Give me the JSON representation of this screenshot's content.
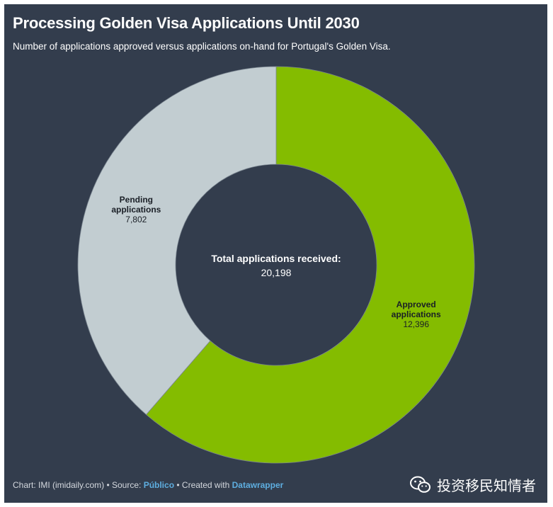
{
  "header": {
    "title": "Processing Golden Visa Applications Until 2030",
    "subtitle": "Number of applications approved versus applications on-hand for Portugal's Golden Visa."
  },
  "chart_data": {
    "type": "pie",
    "variant": "donut",
    "title": "Processing Golden Visa Applications Until 2030",
    "subtitle": "Number of applications approved versus applications on-hand for Portugal's Golden Visa.",
    "slices": [
      {
        "label_line1": "Approved",
        "label_line2": "applications",
        "value": 12396,
        "value_text": "12,396",
        "color": "#84bc00"
      },
      {
        "label_line1": "Pending",
        "label_line2": "applications",
        "value": 7802,
        "value_text": "7,802",
        "color": "#c2cdd1"
      }
    ],
    "center": {
      "label": "Total applications received:",
      "value_text": "20,198"
    }
  },
  "footer": {
    "prefix": "Chart: IMI (imidaily.com) • Source: ",
    "source_link": "Público",
    "middle": " • Created with ",
    "tool_link": "Datawrapper"
  },
  "watermark": {
    "icon": "wechat-icon",
    "text": "投资移民知情者"
  },
  "colors": {
    "background": "#333d4d",
    "approved": "#84bc00",
    "pending": "#c2cdd1",
    "link": "#5eaee0"
  }
}
